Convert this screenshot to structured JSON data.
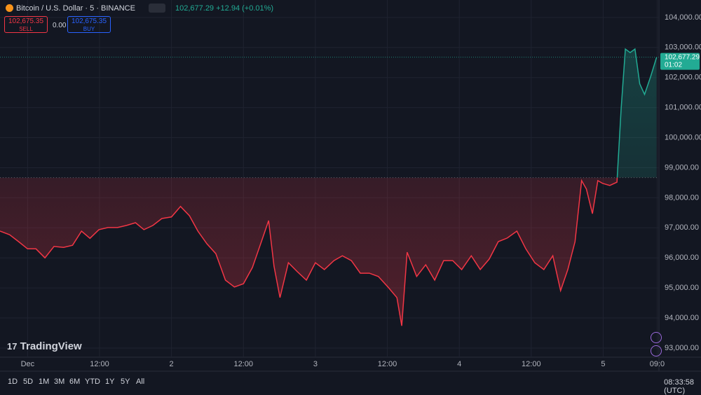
{
  "header": {
    "title": "Bitcoin / U.S. Dollar · 5 · BINANCE",
    "price": "102,677.29",
    "change": "+12.94 (+0.01%)",
    "sell_price": "102,675.35",
    "sell_label": "SELL",
    "spread": "0.00",
    "buy_price": "102,675.35",
    "buy_label": "BUY"
  },
  "logo": "TradingView",
  "toolbar": {
    "ranges": [
      "1D",
      "5D",
      "1M",
      "3M",
      "6M",
      "YTD",
      "1Y",
      "5Y",
      "All"
    ],
    "clock": "08:33:58 (UTC)"
  },
  "chart_data": {
    "type": "baseline",
    "price_label": "102,677.29",
    "countdown": "01:02",
    "last_price": 102677.29,
    "baseline": 98670,
    "up_color": "#22ab94",
    "down_color": "#f23645",
    "grid": true,
    "x": [
      -4.6,
      -3.0,
      -1.5,
      0,
      1.4,
      2.9,
      4.4,
      6.0,
      7.5,
      9.0,
      10.4,
      11.9,
      13.4,
      15.0,
      16.5,
      18.0,
      19.4,
      20.9,
      22.4,
      24.0,
      25.5,
      27.0,
      28.4,
      29.9,
      31.4,
      33.0,
      34.5,
      36.0,
      37.5,
      39.0,
      40.2,
      41.1,
      42.1,
      43.5,
      45.0,
      46.5,
      48.0,
      49.5,
      51.1,
      52.5,
      54.0,
      55.5,
      57.0,
      58.5,
      60.1,
      61.6,
      62.4,
      63.3,
      64.9,
      66.4,
      67.9,
      69.4,
      70.9,
      72.4,
      74.0,
      75.5,
      77.0,
      78.5,
      80.0,
      81.6,
      83.1,
      84.6,
      86.1,
      87.6,
      88.9,
      90.1,
      91.3,
      92.4,
      93.2,
      94.2,
      95.1,
      95.9,
      97.1,
      98.3,
      99.0,
      99.7,
      100.5,
      101.3,
      102.1,
      102.9,
      103.9,
      104.9
    ],
    "values": [
      96890,
      96770,
      96540,
      96300,
      96300,
      96000,
      96380,
      96350,
      96420,
      96890,
      96650,
      96940,
      97010,
      97010,
      97080,
      97170,
      96940,
      97080,
      97310,
      97360,
      97710,
      97400,
      96890,
      96470,
      96140,
      95260,
      95030,
      95140,
      95680,
      96540,
      97240,
      95720,
      94680,
      95840,
      95540,
      95260,
      95840,
      95610,
      95910,
      96070,
      95910,
      95490,
      95490,
      95380,
      95030,
      94680,
      93740,
      96190,
      95380,
      95770,
      95260,
      95910,
      95910,
      95610,
      96070,
      95610,
      95960,
      96540,
      96660,
      96890,
      96300,
      95840,
      95610,
      96070,
      94910,
      95610,
      96540,
      98570,
      98290,
      97470,
      98570,
      98480,
      98410,
      98520,
      100970,
      102950,
      102830,
      102950,
      101790,
      101440,
      102020,
      102670
    ],
    "xlim": [
      -4.6,
      105.3
    ],
    "xticks": [
      {
        "value": 0,
        "label": "Dec"
      },
      {
        "value": 12,
        "label": "12:00"
      },
      {
        "value": 24,
        "label": "2"
      },
      {
        "value": 36,
        "label": "12:00"
      },
      {
        "value": 48,
        "label": "3"
      },
      {
        "value": 60,
        "label": "12:00"
      },
      {
        "value": 72,
        "label": "4"
      },
      {
        "value": 84,
        "label": "12:00"
      },
      {
        "value": 96,
        "label": "5"
      },
      {
        "value": 105,
        "label": "09:0"
      }
    ],
    "ylim": [
      92230,
      104580
    ],
    "yticks": [
      {
        "value": 93000,
        "label": "93,000.00"
      },
      {
        "value": 94000,
        "label": "94,000.00"
      },
      {
        "value": 95000,
        "label": "95,000.00"
      },
      {
        "value": 96000,
        "label": "96,000.00"
      },
      {
        "value": 97000,
        "label": "97,000.00"
      },
      {
        "value": 98000,
        "label": "98,000.00"
      },
      {
        "value": 99000,
        "label": "99,000.00"
      },
      {
        "value": 100000,
        "label": "100,000.00"
      },
      {
        "value": 101000,
        "label": "101,000.00"
      },
      {
        "value": 102000,
        "label": "102,000.00"
      },
      {
        "value": 103000,
        "label": "103,000.00"
      },
      {
        "value": 104000,
        "label": "104,000.00"
      }
    ]
  }
}
